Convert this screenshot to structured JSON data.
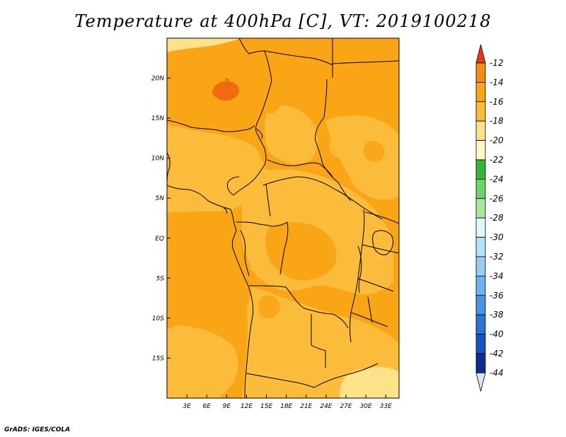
{
  "title": "Temperature at 400hPa [C], VT: 2019100218",
  "credit": "GrADS: IGES/COLA",
  "map": {
    "lon_range": [
      0,
      35
    ],
    "lat_range": [
      -20,
      25
    ],
    "lon_ticks": [
      {
        "value": 3,
        "label": "3E"
      },
      {
        "value": 6,
        "label": "6E"
      },
      {
        "value": 9,
        "label": "9E"
      },
      {
        "value": 12,
        "label": "12E"
      },
      {
        "value": 15,
        "label": "15E"
      },
      {
        "value": 18,
        "label": "18E"
      },
      {
        "value": 21,
        "label": "21E"
      },
      {
        "value": 24,
        "label": "24E"
      },
      {
        "value": 27,
        "label": "27E"
      },
      {
        "value": 30,
        "label": "30E"
      },
      {
        "value": 33,
        "label": "33E"
      }
    ],
    "lat_ticks": [
      {
        "value": 20,
        "label": "20N"
      },
      {
        "value": 15,
        "label": "15N"
      },
      {
        "value": 10,
        "label": "10N"
      },
      {
        "value": 5,
        "label": "5N"
      },
      {
        "value": 0,
        "label": "EQ"
      },
      {
        "value": -5,
        "label": "5S"
      },
      {
        "value": -10,
        "label": "10S"
      },
      {
        "value": -15,
        "label": "15S"
      }
    ]
  },
  "colorbar": {
    "levels": [
      {
        "label": "-12",
        "color": "#f06a10"
      },
      {
        "label": "-14",
        "color": "#f58e10"
      },
      {
        "label": "-16",
        "color": "#f9a516"
      },
      {
        "label": "-18",
        "color": "#fbbc3c"
      },
      {
        "label": "-20",
        "color": "#fde28a"
      },
      {
        "label": "-22",
        "color": "#fff8c4"
      },
      {
        "label": "-24",
        "color": "#32b834"
      },
      {
        "label": "-26",
        "color": "#6cd46a"
      },
      {
        "label": "-28",
        "color": "#a8e8a0"
      },
      {
        "label": "-30",
        "color": "#e2f8f8"
      },
      {
        "label": "-32",
        "color": "#b8e2f8"
      },
      {
        "label": "-34",
        "color": "#94ccf4"
      },
      {
        "label": "-36",
        "color": "#6eb2ee"
      },
      {
        "label": "-38",
        "color": "#4a94e6"
      },
      {
        "label": "-40",
        "color": "#2a74d8"
      },
      {
        "label": "-42",
        "color": "#1656c4"
      },
      {
        "label": "-44",
        "color": "#0c2c90"
      }
    ],
    "top_extension_color": "#e83c10",
    "bottom_extension_color": "#dce4f8"
  }
}
